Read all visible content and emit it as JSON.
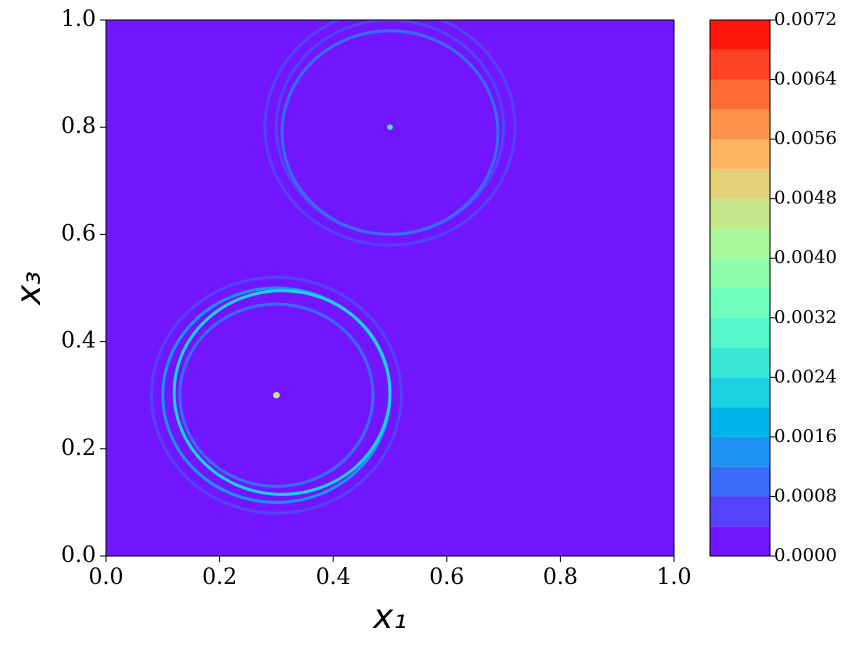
{
  "chart_data": {
    "type": "contour",
    "xlabel": "x₁",
    "ylabel": "x₃",
    "xlim": [
      0,
      1
    ],
    "ylim": [
      0,
      1
    ],
    "xticks": [
      {
        "value": 0,
        "label": "0.0"
      },
      {
        "value": 0.2,
        "label": "0.2"
      },
      {
        "value": 0.4,
        "label": "0.4"
      },
      {
        "value": 0.6,
        "label": "0.6"
      },
      {
        "value": 0.8,
        "label": "0.8"
      },
      {
        "value": 1,
        "label": "1.0"
      }
    ],
    "yticks": [
      {
        "value": 0,
        "label": "0.0"
      },
      {
        "value": 0.2,
        "label": "0.2"
      },
      {
        "value": 0.4,
        "label": "0.4"
      },
      {
        "value": 0.6,
        "label": "0.6"
      },
      {
        "value": 0.8,
        "label": "0.8"
      },
      {
        "value": 1,
        "label": "1.0"
      }
    ],
    "levels": [
      0,
      0.0004,
      0.0008,
      0.0012,
      0.0016,
      0.002,
      0.0024,
      0.0028,
      0.0032,
      0.0036,
      0.004,
      0.0044,
      0.0048,
      0.0052,
      0.0056,
      0.006,
      0.0064,
      0.0068,
      0.0072
    ],
    "colors": [
      "#7116fe",
      "#5542fd",
      "#386cf9",
      "#1c92f3",
      "#00b4eb",
      "#1cd1e2",
      "#38e7d6",
      "#55f6ca",
      "#71febc",
      "#8efeac",
      "#aaf69b",
      "#c6e789",
      "#e2d177",
      "#ffb462",
      "#ff924c",
      "#ff6c36",
      "#ff4221",
      "#ff160b"
    ],
    "cticks": [
      {
        "value": 0,
        "label": "0.0000"
      },
      {
        "value": 0.0008,
        "label": "0.0008"
      },
      {
        "value": 0.0016,
        "label": "0.0016"
      },
      {
        "value": 0.0024,
        "label": "0.0024"
      },
      {
        "value": 0.0032,
        "label": "0.0032"
      },
      {
        "value": 0.004,
        "label": "0.0040"
      },
      {
        "value": 0.0048,
        "label": "0.0048"
      },
      {
        "value": 0.0056,
        "label": "0.0056"
      },
      {
        "value": 0.0064,
        "label": "0.0064"
      },
      {
        "value": 0.0072,
        "label": "0.0072"
      }
    ],
    "rings": [
      {
        "x": 0.3,
        "y": 0.3,
        "r": 0.22,
        "value": 0.0006
      },
      {
        "x": 0.3,
        "y": 0.3,
        "r": 0.2,
        "value": 0.0012
      },
      {
        "x": 0.31,
        "y": 0.305,
        "r": 0.19,
        "value": 0.0022
      },
      {
        "x": 0.3,
        "y": 0.3,
        "r": 0.17,
        "value": 0.001
      },
      {
        "x": 0.5,
        "y": 0.8,
        "r": 0.22,
        "value": 0.0005
      },
      {
        "x": 0.5,
        "y": 0.8,
        "r": 0.2,
        "value": 0.0006
      },
      {
        "x": 0.5,
        "y": 0.79,
        "r": 0.19,
        "value": 0.001
      },
      {
        "x": 0.3,
        "y": 0.3,
        "r": 0.006,
        "value": 0.0044
      },
      {
        "x": 0.5,
        "y": 0.8,
        "r": 0.005,
        "value": 0.0024
      }
    ]
  }
}
